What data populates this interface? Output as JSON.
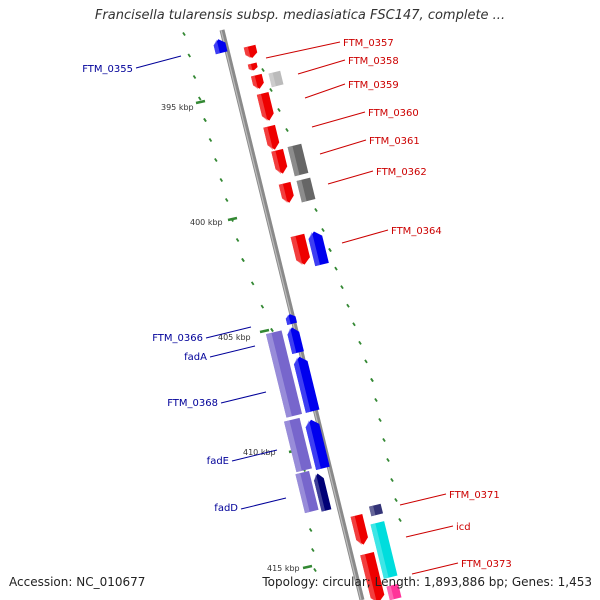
{
  "title": "Francisella tularensis subsp. mediasiatica FSC147, complete ...",
  "footer": {
    "accession": "Accession: NC_010677",
    "summary": "Topology: circular; Length: 1,893,886 bp; Genes: 1,453"
  },
  "colors": {
    "backbone": "#888888",
    "forward_label": "#cc0000",
    "reverse_label": "#000099",
    "tick": "#338833",
    "red_gene": "#ee0000",
    "blue_gene": "#0000ee",
    "gray_gene": "#666666",
    "purple_gene": "#7766cc",
    "cyan_gene": "#00dddd",
    "pink_gene": "#ff3399"
  },
  "scale_labels": [
    "395 kbp",
    "400 kbp",
    "405 kbp",
    "410 kbp",
    "415 kbp"
  ],
  "gene_labels_forward": [
    "FTM_0357",
    "FTM_0358",
    "FTM_0359",
    "FTM_0360",
    "FTM_0361",
    "FTM_0362",
    "FTM_0364",
    "FTM_0371",
    "icd",
    "FTM_0373"
  ],
  "gene_labels_reverse": [
    "FTM_0355",
    "FTM_0366",
    "fadA",
    "FTM_0368",
    "fadE",
    "fadD"
  ]
}
